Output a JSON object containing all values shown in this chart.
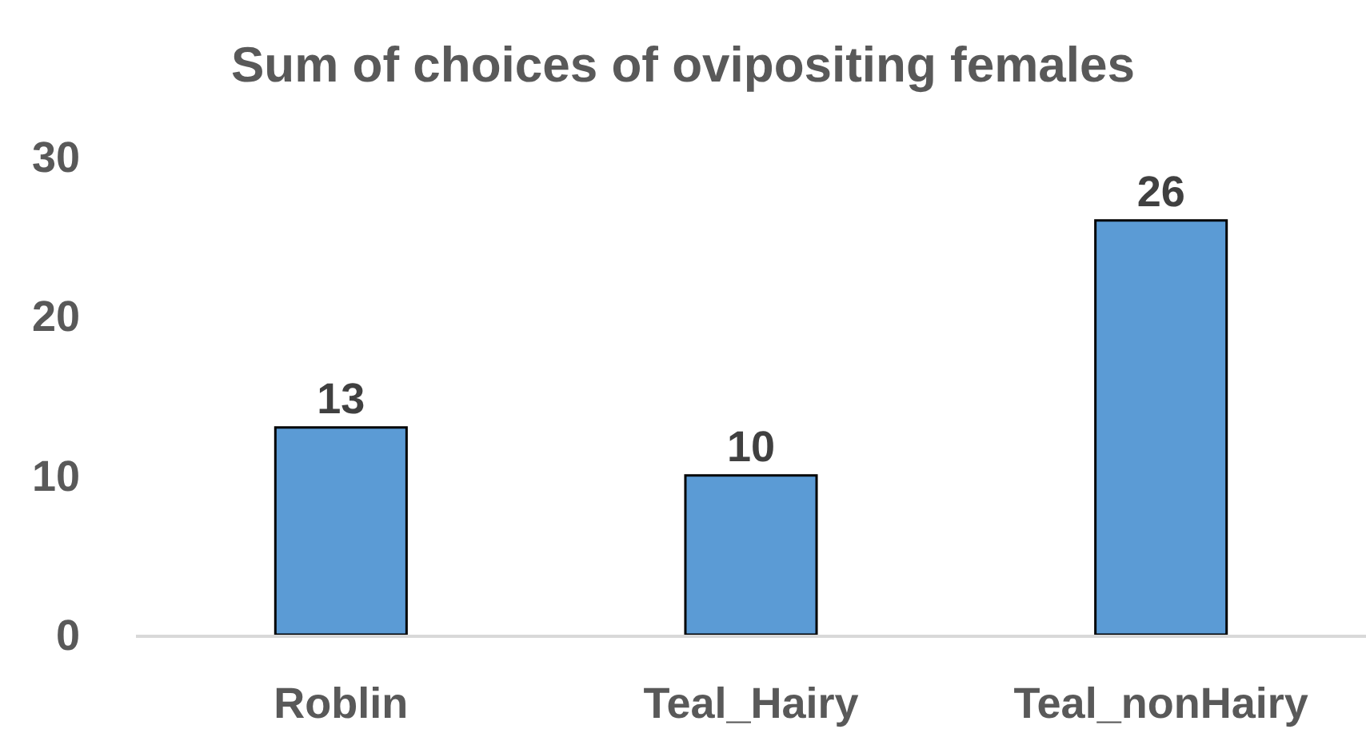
{
  "chart_data": {
    "type": "bar",
    "title": "Sum of choices of ovipositing females",
    "categories": [
      "Roblin",
      "Teal_Hairy",
      "Teal_nonHairy"
    ],
    "values": [
      13,
      10,
      26
    ],
    "color": "#5b9bd5",
    "ylim": [
      0,
      30
    ],
    "yticks": [
      0,
      10,
      20,
      30
    ],
    "data_labels": true
  }
}
